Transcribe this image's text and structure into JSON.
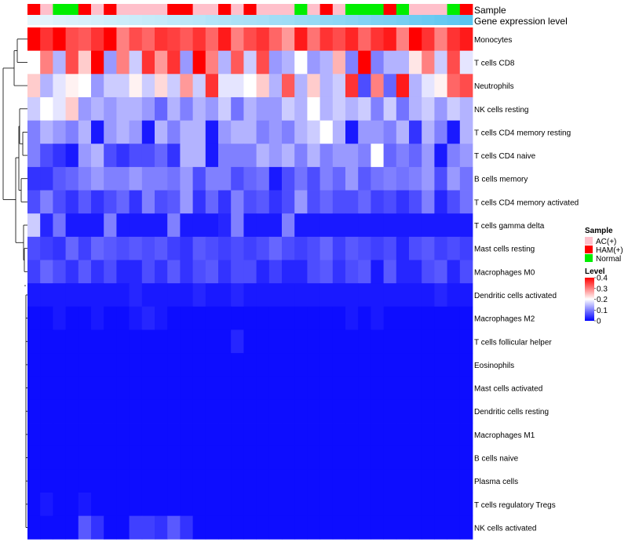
{
  "chart_data": {
    "type": "heatmap",
    "title": "",
    "annotation_labels": {
      "sample": "Sample",
      "gene_expression": "Gene expression level"
    },
    "rows": [
      "Monocytes",
      "T cells CD8",
      "Neutrophils",
      "NK cells resting",
      "T cells CD4 memory resting",
      "T cells CD4 naive",
      "B cells memory",
      "T cells CD4 memory activated",
      "T cells gamma delta",
      "Mast cells resting",
      "Macrophages M0",
      "Dendritic cells activated",
      "Macrophages M2",
      "T cells follicular helper",
      "Eosinophils",
      "Mast cells activated",
      "Dendritic cells resting",
      "Macrophages M1",
      "B cells naive",
      "Plasma cells",
      "T cells regulatory  Tregs",
      "NK cells activated"
    ],
    "sample_groups": [
      "H",
      "A",
      "N",
      "N",
      "H",
      "A",
      "H",
      "A",
      "A",
      "A",
      "A",
      "H",
      "H",
      "A",
      "A",
      "H",
      "A",
      "H",
      "A",
      "A",
      "A",
      "N",
      "A",
      "H",
      "A",
      "N",
      "N",
      "N",
      "H",
      "N",
      "A",
      "A",
      "A",
      "N",
      "H"
    ],
    "gene_expression_levels": [
      0.05,
      0.07,
      0.09,
      0.1,
      0.11,
      0.12,
      0.14,
      0.15,
      0.16,
      0.17,
      0.18,
      0.2,
      0.21,
      0.22,
      0.24,
      0.25,
      0.27,
      0.28,
      0.29,
      0.31,
      0.32,
      0.34,
      0.35,
      0.37,
      0.38,
      0.4,
      0.42,
      0.44,
      0.45,
      0.47,
      0.49,
      0.51,
      0.53,
      0.55,
      0.58
    ],
    "values": [
      [
        0.4,
        0.36,
        0.4,
        0.34,
        0.33,
        0.36,
        0.4,
        0.3,
        0.34,
        0.32,
        0.36,
        0.35,
        0.33,
        0.36,
        0.32,
        0.38,
        0.3,
        0.34,
        0.36,
        0.32,
        0.28,
        0.38,
        0.31,
        0.36,
        0.34,
        0.37,
        0.32,
        0.36,
        0.38,
        0.3,
        0.4,
        0.36,
        0.3,
        0.36,
        0.38
      ],
      [
        0.2,
        0.3,
        0.14,
        0.34,
        0.24,
        0.4,
        0.12,
        0.3,
        0.16,
        0.36,
        0.28,
        0.36,
        0.12,
        0.4,
        0.3,
        0.14,
        0.33,
        0.16,
        0.34,
        0.12,
        0.14,
        0.2,
        0.12,
        0.14,
        0.26,
        0.1,
        0.4,
        0.1,
        0.14,
        0.14,
        0.22,
        0.3,
        0.16,
        0.34,
        0.18
      ],
      [
        0.24,
        0.14,
        0.18,
        0.21,
        0.2,
        0.12,
        0.16,
        0.16,
        0.21,
        0.16,
        0.23,
        0.16,
        0.28,
        0.16,
        0.36,
        0.18,
        0.18,
        0.2,
        0.24,
        0.14,
        0.33,
        0.14,
        0.24,
        0.14,
        0.16,
        0.36,
        0.06,
        0.3,
        0.08,
        0.38,
        0.14,
        0.18,
        0.21,
        0.32,
        0.34
      ],
      [
        0.16,
        0.2,
        0.18,
        0.24,
        0.12,
        0.14,
        0.12,
        0.14,
        0.14,
        0.12,
        0.08,
        0.14,
        0.1,
        0.14,
        0.12,
        0.16,
        0.09,
        0.14,
        0.12,
        0.12,
        0.16,
        0.14,
        0.2,
        0.14,
        0.16,
        0.14,
        0.16,
        0.1,
        0.16,
        0.09,
        0.14,
        0.16,
        0.12,
        0.16,
        0.14
      ],
      [
        0.1,
        0.14,
        0.12,
        0.1,
        0.14,
        0.02,
        0.12,
        0.14,
        0.12,
        0.02,
        0.14,
        0.1,
        0.14,
        0.14,
        0.02,
        0.12,
        0.14,
        0.14,
        0.1,
        0.12,
        0.1,
        0.14,
        0.16,
        0.2,
        0.14,
        0.02,
        0.12,
        0.12,
        0.1,
        0.14,
        0.04,
        0.14,
        0.1,
        0.02,
        0.14
      ],
      [
        0.1,
        0.06,
        0.04,
        0.02,
        0.12,
        0.14,
        0.06,
        0.04,
        0.06,
        0.06,
        0.08,
        0.04,
        0.14,
        0.14,
        0.02,
        0.1,
        0.1,
        0.1,
        0.14,
        0.12,
        0.14,
        0.1,
        0.14,
        0.1,
        0.12,
        0.12,
        0.1,
        0.2,
        0.08,
        0.1,
        0.08,
        0.12,
        0.02,
        0.1,
        0.12
      ],
      [
        0.04,
        0.04,
        0.07,
        0.08,
        0.1,
        0.12,
        0.1,
        0.1,
        0.12,
        0.1,
        0.1,
        0.09,
        0.12,
        0.06,
        0.1,
        0.1,
        0.06,
        0.08,
        0.09,
        0.02,
        0.06,
        0.09,
        0.06,
        0.1,
        0.08,
        0.12,
        0.07,
        0.09,
        0.1,
        0.09,
        0.1,
        0.12,
        0.06,
        0.12,
        0.09
      ],
      [
        0.06,
        0.1,
        0.06,
        0.04,
        0.07,
        0.04,
        0.06,
        0.08,
        0.04,
        0.1,
        0.06,
        0.07,
        0.12,
        0.04,
        0.08,
        0.04,
        0.1,
        0.06,
        0.07,
        0.04,
        0.06,
        0.12,
        0.06,
        0.08,
        0.06,
        0.06,
        0.08,
        0.05,
        0.06,
        0.04,
        0.06,
        0.1,
        0.03,
        0.06,
        0.09
      ],
      [
        0.16,
        0.03,
        0.09,
        0.02,
        0.02,
        0.02,
        0.1,
        0.02,
        0.02,
        0.02,
        0.02,
        0.1,
        0.02,
        0.02,
        0.02,
        0.03,
        0.1,
        0.02,
        0.02,
        0.02,
        0.1,
        0.02,
        0.02,
        0.02,
        0.02,
        0.02,
        0.02,
        0.02,
        0.02,
        0.02,
        0.02,
        0.02,
        0.02,
        0.02,
        0.02
      ],
      [
        0.06,
        0.05,
        0.04,
        0.08,
        0.05,
        0.08,
        0.07,
        0.06,
        0.07,
        0.06,
        0.07,
        0.05,
        0.04,
        0.07,
        0.06,
        0.05,
        0.06,
        0.05,
        0.06,
        0.08,
        0.06,
        0.05,
        0.06,
        0.08,
        0.05,
        0.07,
        0.06,
        0.05,
        0.06,
        0.03,
        0.06,
        0.07,
        0.05,
        0.06,
        0.05
      ],
      [
        0.05,
        0.08,
        0.06,
        0.04,
        0.07,
        0.04,
        0.06,
        0.03,
        0.03,
        0.06,
        0.04,
        0.07,
        0.04,
        0.06,
        0.07,
        0.04,
        0.06,
        0.06,
        0.03,
        0.05,
        0.03,
        0.03,
        0.06,
        0.07,
        0.04,
        0.06,
        0.07,
        0.02,
        0.07,
        0.03,
        0.03,
        0.06,
        0.07,
        0.03,
        0.06
      ],
      [
        0.02,
        0.02,
        0.02,
        0.02,
        0.02,
        0.02,
        0.02,
        0.02,
        0.03,
        0.02,
        0.02,
        0.02,
        0.02,
        0.03,
        0.02,
        0.02,
        0.03,
        0.02,
        0.02,
        0.02,
        0.02,
        0.02,
        0.02,
        0.02,
        0.02,
        0.02,
        0.02,
        0.02,
        0.02,
        0.02,
        0.02,
        0.02,
        0.03,
        0.02,
        0.02
      ],
      [
        0.01,
        0.01,
        0.02,
        0.01,
        0.01,
        0.02,
        0.01,
        0.01,
        0.02,
        0.03,
        0.02,
        0.01,
        0.01,
        0.01,
        0.01,
        0.01,
        0.01,
        0.01,
        0.01,
        0.01,
        0.01,
        0.01,
        0.01,
        0.01,
        0.01,
        0.02,
        0.01,
        0.02,
        0.01,
        0.01,
        0.01,
        0.01,
        0.01,
        0.01,
        0.01
      ],
      [
        0.01,
        0.01,
        0.01,
        0.01,
        0.01,
        0.01,
        0.01,
        0.01,
        0.01,
        0.01,
        0.01,
        0.01,
        0.01,
        0.01,
        0.01,
        0.01,
        0.03,
        0.01,
        0.01,
        0.01,
        0.01,
        0.01,
        0.01,
        0.01,
        0.01,
        0.01,
        0.01,
        0.01,
        0.01,
        0.01,
        0.01,
        0.01,
        0.01,
        0.01,
        0.01
      ],
      [
        0.01,
        0.01,
        0.01,
        0.01,
        0.01,
        0.01,
        0.01,
        0.01,
        0.01,
        0.01,
        0.01,
        0.01,
        0.01,
        0.01,
        0.01,
        0.01,
        0.01,
        0.01,
        0.01,
        0.01,
        0.01,
        0.01,
        0.01,
        0.01,
        0.01,
        0.01,
        0.01,
        0.01,
        0.01,
        0.01,
        0.01,
        0.01,
        0.01,
        0.01,
        0.01
      ],
      [
        0.01,
        0.01,
        0.01,
        0.01,
        0.01,
        0.01,
        0.01,
        0.01,
        0.01,
        0.01,
        0.01,
        0.01,
        0.01,
        0.01,
        0.01,
        0.01,
        0.01,
        0.01,
        0.01,
        0.01,
        0.01,
        0.01,
        0.01,
        0.01,
        0.01,
        0.01,
        0.01,
        0.01,
        0.01,
        0.01,
        0.01,
        0.01,
        0.01,
        0.01,
        0.01
      ],
      [
        0.01,
        0.01,
        0.01,
        0.01,
        0.01,
        0.01,
        0.01,
        0.01,
        0.01,
        0.01,
        0.01,
        0.01,
        0.01,
        0.01,
        0.01,
        0.01,
        0.01,
        0.01,
        0.01,
        0.01,
        0.01,
        0.01,
        0.01,
        0.01,
        0.01,
        0.01,
        0.01,
        0.01,
        0.01,
        0.01,
        0.01,
        0.01,
        0.01,
        0.01,
        0.01
      ],
      [
        0.01,
        0.01,
        0.01,
        0.01,
        0.01,
        0.01,
        0.01,
        0.01,
        0.01,
        0.01,
        0.01,
        0.01,
        0.01,
        0.01,
        0.01,
        0.01,
        0.01,
        0.01,
        0.01,
        0.01,
        0.01,
        0.01,
        0.01,
        0.01,
        0.01,
        0.01,
        0.01,
        0.01,
        0.01,
        0.01,
        0.01,
        0.01,
        0.01,
        0.01,
        0.01
      ],
      [
        0.01,
        0.01,
        0.01,
        0.01,
        0.01,
        0.01,
        0.01,
        0.01,
        0.01,
        0.01,
        0.01,
        0.01,
        0.01,
        0.01,
        0.01,
        0.01,
        0.01,
        0.01,
        0.01,
        0.01,
        0.01,
        0.01,
        0.01,
        0.01,
        0.01,
        0.01,
        0.01,
        0.01,
        0.01,
        0.01,
        0.01,
        0.01,
        0.01,
        0.01,
        0.01
      ],
      [
        0.01,
        0.01,
        0.01,
        0.01,
        0.01,
        0.01,
        0.01,
        0.01,
        0.01,
        0.01,
        0.01,
        0.01,
        0.01,
        0.01,
        0.01,
        0.01,
        0.01,
        0.01,
        0.01,
        0.01,
        0.01,
        0.01,
        0.01,
        0.01,
        0.01,
        0.01,
        0.01,
        0.01,
        0.01,
        0.01,
        0.01,
        0.01,
        0.01,
        0.01,
        0.01
      ],
      [
        0.01,
        0.02,
        0.01,
        0.01,
        0.02,
        0.01,
        0.01,
        0.01,
        0.01,
        0.01,
        0.01,
        0.01,
        0.01,
        0.01,
        0.01,
        0.01,
        0.01,
        0.01,
        0.01,
        0.01,
        0.01,
        0.01,
        0.01,
        0.01,
        0.01,
        0.01,
        0.01,
        0.01,
        0.01,
        0.01,
        0.01,
        0.01,
        0.01,
        0.01,
        0.01
      ],
      [
        0.01,
        0.01,
        0.01,
        0.01,
        0.07,
        0.04,
        0.01,
        0.01,
        0.05,
        0.05,
        0.04,
        0.07,
        0.04,
        0.01,
        0.01,
        0.01,
        0.01,
        0.01,
        0.01,
        0.01,
        0.01,
        0.01,
        0.01,
        0.01,
        0.01,
        0.01,
        0.01,
        0.01,
        0.01,
        0.01,
        0.01,
        0.01,
        0.01,
        0.01,
        0.01
      ]
    ],
    "legend": {
      "sample_title": "Sample",
      "sample_entries": [
        {
          "label": "AC(+)",
          "color": "#FFC0CB"
        },
        {
          "label": "HAM(+)",
          "color": "#FF0000"
        },
        {
          "label": "Normal",
          "color": "#00EE00"
        }
      ],
      "level_title": "Level",
      "level_ticks": [
        "0.4",
        "0.3",
        "0.2",
        "0.1",
        "0"
      ],
      "level_range": [
        0,
        0.4
      ],
      "placement": "right"
    },
    "colors": {
      "low": "#0000FF",
      "mid": "#FFFFFF",
      "high": "#FF0000"
    },
    "ylim_color": [
      0,
      0.4
    ]
  }
}
